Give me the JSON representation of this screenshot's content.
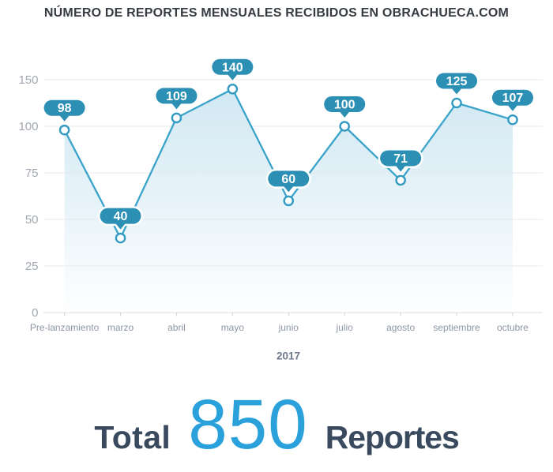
{
  "title": "NÚMERO DE REPORTES MENSUALES RECIBIDOS EN OBRACHUECA.COM",
  "chart_data": {
    "type": "area",
    "categories": [
      "Pre-lanzamiento",
      "marzo",
      "abril",
      "mayo",
      "junio",
      "julio",
      "agosto",
      "septiembre",
      "octubre"
    ],
    "values": [
      98,
      40,
      109,
      140,
      60,
      100,
      71,
      125,
      107
    ],
    "title": "NÚMERO DE REPORTES MENSUALES RECIBIDOS EN OBRACHUECA.COM",
    "xlabel": "2017",
    "ylabel": "",
    "yticks": [
      0,
      25,
      50,
      75,
      100,
      150
    ],
    "ylim": [
      0,
      150
    ],
    "grid": true,
    "legend": false,
    "point_labels_shown": true,
    "colors": {
      "line": "#3aa3ca",
      "marker_ring": "#339bc2",
      "marker_fill": "#ffffff",
      "bubble": "#2c8fb4",
      "bubble_text": "#ffffff",
      "area_top": "#cfe7f2",
      "area_bottom": "#fdfeff",
      "gridline": "#e4e7ea",
      "axis_line": "#d9dcdf",
      "tick_mark": "#ccd1d6",
      "y_label": "#a2a8b1",
      "x_label": "#8d97a7",
      "xlabel_year": "#6f7a8a"
    }
  },
  "footer": {
    "total_prefix": "Total",
    "total_value": "850",
    "total_suffix": "Reportes"
  }
}
